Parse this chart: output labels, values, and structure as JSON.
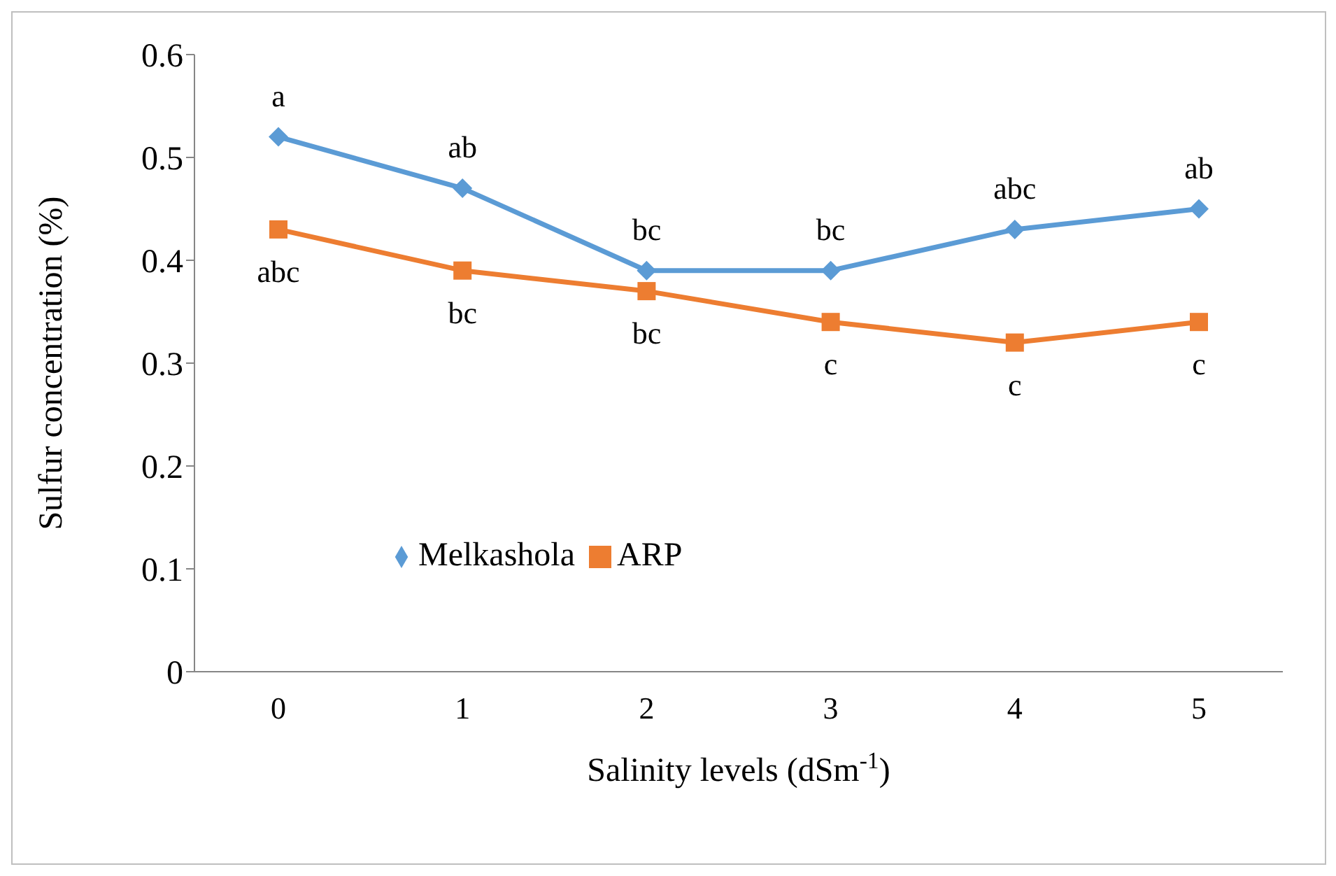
{
  "chart_data": {
    "type": "line",
    "ylabel": "Sulfur concentration (%)",
    "xlabel": "Salinity levels (dSm$^{-1}$)",
    "categories": [
      "0",
      "1",
      "2",
      "3",
      "4",
      "5"
    ],
    "series": [
      {
        "name": "Melkashola",
        "color": "#5b9bd5",
        "marker": "diamond",
        "values": [
          0.52,
          0.47,
          0.39,
          0.39,
          0.43,
          0.45
        ]
      },
      {
        "name": "ARP",
        "color": "#ed7d31",
        "marker": "square",
        "values": [
          0.43,
          0.39,
          0.37,
          0.34,
          0.32,
          0.34
        ]
      }
    ],
    "ylim": [
      0,
      0.6
    ],
    "yticks": [
      0,
      0.1,
      0.2,
      0.3,
      0.4,
      0.5,
      0.6
    ],
    "grid": false,
    "legend": "bottom",
    "line_style": "solid",
    "annotations": [
      {
        "text": "a",
        "x": "0",
        "y": 0.52
      },
      {
        "text": "ab",
        "x": "1",
        "y": 0.47
      },
      {
        "text": "bc",
        "x": "2",
        "y": 0.39
      },
      {
        "text": "bc",
        "x": "3",
        "y": 0.39
      },
      {
        "text": "abc",
        "x": "4",
        "y": 0.43
      },
      {
        "text": "ab",
        "x": "5",
        "y": 0.45
      },
      {
        "text": "abc",
        "x": "0",
        "y": 0.43
      },
      {
        "text": "bc",
        "x": "1",
        "y": 0.39
      },
      {
        "text": "bc",
        "x": "2",
        "y": 0.37
      },
      {
        "text": "c",
        "x": "3",
        "y": 0.34
      },
      {
        "text": "c",
        "x": "4",
        "y": 0.32
      },
      {
        "text": "c",
        "x": "5",
        "y": 0.34
      }
    ]
  }
}
